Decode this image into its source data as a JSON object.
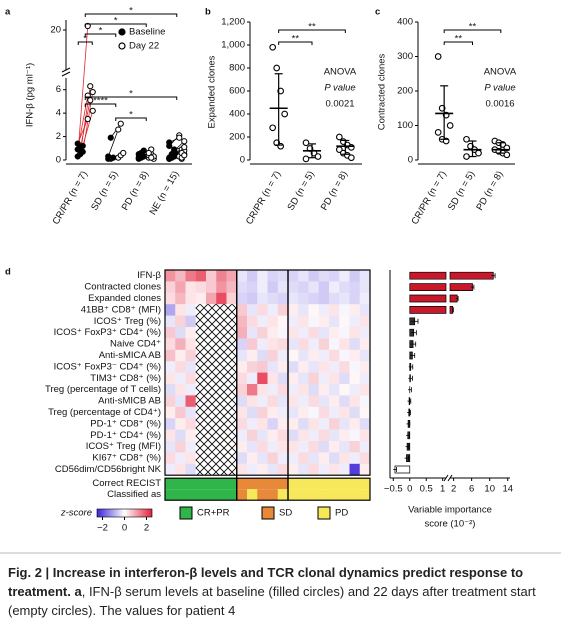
{
  "chart_data": [
    {
      "type": "paired-dot",
      "panel": "a",
      "ylabel": "IFN-β (pg ml⁻¹)",
      "categories": [
        "CR/PR (n = 7)",
        "SD (n = 5)",
        "PD (n = 8)",
        "NE (n = 15)"
      ],
      "ylim": [
        0,
        7
      ],
      "yticks": [
        0,
        2,
        4,
        6
      ],
      "ylim_upper": [
        18,
        20.5
      ],
      "yticks_upper": [
        20
      ],
      "line_colors": [
        "#e0262b",
        "#000000",
        "#000000",
        "#000000"
      ],
      "series": [
        {
          "name": "Baseline",
          "color": "#000000",
          "filled": true,
          "values": [
            [
              0.3,
              0.5,
              0.7,
              0.9,
              1.0,
              1.2,
              1.4
            ],
            [
              0.1,
              0.1,
              0.2,
              0.3,
              1.9
            ],
            [
              0.1,
              0.2,
              0.3,
              0.5,
              0.6,
              0.8,
              0.2,
              0.4
            ],
            [
              0.1,
              0.2,
              0.3,
              0.2,
              0.5,
              0.8,
              1.2,
              0.4,
              0.6,
              0.1,
              0.3,
              0.9,
              1.5,
              0.2,
              0.7
            ]
          ]
        },
        {
          "name": "Day 22",
          "color": "#000000",
          "filled": false,
          "values": [
            [
              20.2,
              6.3,
              5.8,
              5.5,
              5.1,
              4.2,
              3.5
            ],
            [
              0.2,
              0.4,
              0.6,
              2.6,
              3.1
            ],
            [
              0.2,
              0.5,
              0.1,
              0.4,
              0.9,
              0.3,
              0.6,
              0.2
            ],
            [
              0.3,
              0.1,
              0.5,
              0.4,
              0.9,
              1.6,
              2.1,
              0.2,
              0.8,
              0.3,
              0.2,
              1.1,
              1.9,
              0.6,
              0.4
            ]
          ]
        }
      ],
      "annotations": [
        {
          "text": "*",
          "from": 0,
          "to": 3
        },
        {
          "text": "*",
          "from": 0,
          "to": 2
        },
        {
          "text": "*",
          "from": 0,
          "to": 1
        },
        {
          "text": "*",
          "from": 0,
          "to": 0
        },
        {
          "text": "*",
          "from": 0,
          "to": 3
        },
        {
          "text": "****",
          "from": 0,
          "to": 1
        },
        {
          "text": "*",
          "from": 1,
          "to": 2
        }
      ]
    },
    {
      "type": "dot-median",
      "panel": "b",
      "ylabel": "Expanded clones",
      "categories": [
        "CR/PR (n = 7)",
        "SD (n = 5)",
        "PD (n = 8)"
      ],
      "ylim": [
        0,
        1200
      ],
      "yticks": [
        0,
        200,
        400,
        600,
        800,
        {
          "value": 1000,
          "label": "1,000"
        },
        {
          "value": 1200,
          "label": "1,200"
        }
      ],
      "values": [
        [
          980,
          800,
          600,
          400,
          280,
          150,
          120
        ],
        [
          150,
          100,
          60,
          30,
          10
        ],
        [
          200,
          160,
          130,
          110,
          90,
          60,
          40,
          20
        ]
      ],
      "medians": [
        450,
        80,
        120
      ],
      "ranges": [
        [
          130,
          750
        ],
        [
          20,
          140
        ],
        [
          50,
          170
        ]
      ],
      "annotations": [
        {
          "text": "**",
          "from": 0,
          "to": 2
        },
        {
          "text": "**",
          "from": 0,
          "to": 1
        }
      ],
      "stats_text": [
        "ANOVA",
        "P value",
        "0.0021"
      ]
    },
    {
      "type": "dot-median",
      "panel": "c",
      "ylabel": "Contracted clones",
      "categories": [
        "CR/PR (n = 7)",
        "SD (n = 5)",
        "PD (n = 8)"
      ],
      "ylim": [
        0,
        400
      ],
      "yticks": [
        0,
        100,
        200,
        300,
        400
      ],
      "values": [
        [
          300,
          150,
          130,
          100,
          80,
          60,
          55
        ],
        [
          60,
          40,
          30,
          20,
          10
        ],
        [
          55,
          50,
          45,
          35,
          30,
          25,
          20,
          15
        ]
      ],
      "medians": [
        135,
        30,
        30
      ],
      "ranges": [
        [
          60,
          215
        ],
        [
          10,
          55
        ],
        [
          20,
          50
        ]
      ],
      "annotations": [
        {
          "text": "**",
          "from": 0,
          "to": 2
        },
        {
          "text": "**",
          "from": 0,
          "to": 1
        }
      ],
      "stats_text": [
        "ANOVA",
        "P value",
        "0.0016"
      ]
    },
    {
      "type": "heatmap",
      "panel": "d",
      "rows": [
        "IFN-β",
        "Contracted clones",
        "Expanded clones",
        "41BB⁺ CD8⁺ (MFI)",
        "ICOS⁺ Treg (%)",
        "ICOS⁺ FoxP3⁺ CD4⁺ (%)",
        "Naive CD4⁺",
        "Anti-sMICA AB",
        "ICOS⁺ FoxP3⁻ CD4⁺ (%)",
        "TIM3⁺ CD8⁺ (%)",
        "Treg (percentage of T cells)",
        "Anti-sMICB AB",
        "Treg (percentage of CD4⁺)",
        "PD-1⁺ CD8⁺ (%)",
        "PD-1⁺ CD4⁺ (%)",
        "ICOS⁺ Treg (MFI)",
        "KI67⁺ CD8⁺ (%)",
        "CD56dim/CD56bright NK"
      ],
      "values": [
        [
          1.2,
          0.8,
          1.5,
          1.8,
          0.6,
          1.4,
          1.0,
          -0.3,
          -0.6,
          -0.2,
          -0.5,
          -0.4,
          -0.5,
          -0.3,
          -0.6,
          -0.4,
          -0.5,
          -0.2,
          -0.6,
          -0.3
        ],
        [
          0.5,
          1.0,
          0.3,
          0.4,
          0.6,
          1.2,
          0.8,
          -0.4,
          -0.5,
          -0.2,
          -0.6,
          -0.3,
          -0.4,
          -0.5,
          -0.3,
          -0.6,
          -0.2,
          -0.4,
          -0.5,
          -0.3
        ],
        [
          0.4,
          0.8,
          0.3,
          0.2,
          1.0,
          2.0,
          0.5,
          -0.5,
          -0.6,
          -0.3,
          -0.4,
          -0.5,
          -0.3,
          -0.4,
          -0.5,
          -0.6,
          -0.4,
          -0.3,
          -0.5,
          -0.2
        ],
        [
          -1.0,
          0.3,
          -0.2,
          null,
          null,
          null,
          null,
          0.6,
          -0.3,
          0.4,
          -0.2,
          0.5,
          0.2,
          -0.3,
          0.1,
          -0.2,
          0.3,
          -0.1,
          0.2,
          -0.3
        ],
        [
          -0.3,
          0.5,
          -0.6,
          null,
          null,
          null,
          null,
          0.8,
          0.4,
          -0.2,
          0.3,
          0.1,
          -0.2,
          0.3,
          -0.1,
          0.2,
          -0.3,
          0.1,
          -0.2,
          0.3
        ],
        [
          0.6,
          -0.4,
          0.2,
          null,
          null,
          null,
          null,
          0.9,
          -0.3,
          0.5,
          0.2,
          -0.1,
          0.3,
          -0.2,
          0.4,
          -0.3,
          0.2,
          -0.1,
          0.3,
          -0.2
        ],
        [
          0.4,
          0.9,
          0.3,
          null,
          null,
          null,
          null,
          -0.5,
          0.6,
          -0.2,
          0.3,
          0.4,
          -0.3,
          0.4,
          -0.2,
          0.5,
          -0.1,
          0.3,
          -0.4,
          0.2
        ],
        [
          0.7,
          0.2,
          0.5,
          null,
          null,
          null,
          null,
          -0.3,
          0.2,
          -0.4,
          0.5,
          -0.2,
          0.1,
          -0.3,
          0.2,
          -0.2,
          0.4,
          -0.1,
          0.2,
          -0.3
        ],
        [
          -0.2,
          0.4,
          -0.3,
          null,
          null,
          null,
          null,
          0.2,
          0.5,
          0.6,
          -0.3,
          0.2,
          -0.4,
          0.2,
          -0.3,
          0.3,
          -0.2,
          0.4,
          -0.1,
          0.2
        ],
        [
          0.3,
          -0.2,
          0.4,
          null,
          null,
          null,
          null,
          0.4,
          -0.2,
          2.0,
          0.3,
          -0.4,
          0.2,
          -0.3,
          0.5,
          -0.2,
          0.3,
          -0.4,
          0.1,
          -0.2
        ],
        [
          -0.4,
          0.3,
          -0.2,
          null,
          null,
          null,
          null,
          0.5,
          1.5,
          0.3,
          -0.2,
          0.4,
          -0.2,
          0.3,
          -0.4,
          0.2,
          -0.3,
          0.1,
          -0.2,
          0.3
        ],
        [
          0.5,
          -0.3,
          1.8,
          null,
          null,
          null,
          null,
          -0.4,
          0.3,
          -0.2,
          0.4,
          -0.3,
          0.3,
          -0.2,
          0.4,
          -0.3,
          0.2,
          -0.4,
          0.3,
          -0.1
        ],
        [
          0.2,
          0.6,
          -0.3,
          null,
          null,
          null,
          null,
          0.3,
          -0.4,
          0.5,
          0.2,
          -0.2,
          -0.3,
          0.2,
          -0.1,
          0.4,
          -0.2,
          0.3,
          -0.4,
          0.1
        ],
        [
          -0.5,
          0.2,
          0.4,
          null,
          null,
          null,
          null,
          0.4,
          -0.2,
          0.3,
          -0.5,
          0.2,
          0.2,
          -0.4,
          0.3,
          -0.2,
          0.5,
          -0.3,
          0.2,
          -0.4
        ],
        [
          0.3,
          -0.4,
          0.2,
          null,
          null,
          null,
          null,
          -0.2,
          0.5,
          -0.3,
          0.2,
          0.4,
          -0.4,
          0.3,
          -0.2,
          0.4,
          -0.3,
          0.2,
          -0.1,
          0.3
        ],
        [
          -0.3,
          0.5,
          -0.2,
          null,
          null,
          null,
          null,
          0.2,
          -0.3,
          0.4,
          -0.2,
          0.3,
          0.3,
          -0.2,
          0.4,
          -0.4,
          0.2,
          -0.3,
          0.5,
          -0.2
        ],
        [
          0.4,
          -0.2,
          0.3,
          null,
          null,
          null,
          null,
          -0.4,
          0.2,
          -0.3,
          0.5,
          -0.2,
          -0.2,
          0.4,
          -0.3,
          0.2,
          -0.4,
          0.3,
          -0.2,
          0.4
        ],
        [
          -0.2,
          0.3,
          -0.4,
          null,
          null,
          null,
          null,
          0.3,
          -0.2,
          0.2,
          -0.3,
          0.4,
          0.2,
          -0.3,
          0.4,
          -0.2,
          0.3,
          -0.2,
          -2.2,
          0.2
        ]
      ],
      "zlim": [
        -2.5,
        2.5
      ],
      "colormap": [
        "#3a23d6",
        "#ffffff",
        "#e3203a"
      ],
      "colorbar_label": "z-score",
      "colorbar_ticks": [
        {
          "value": -2,
          "label": "−2"
        },
        0,
        2
      ],
      "annotation_rows": [
        "Correct RECIST",
        "Classified as"
      ],
      "classes": [
        "CR+PR",
        "SD",
        "PD"
      ],
      "class_colors": [
        "#2fb54a",
        "#e8893a",
        "#f6e85a"
      ],
      "recist": [
        0,
        0,
        0,
        0,
        0,
        0,
        0,
        1,
        1,
        1,
        1,
        1,
        2,
        2,
        2,
        2,
        2,
        2,
        2,
        2
      ],
      "classified": [
        0,
        0,
        0,
        0,
        0,
        0,
        0,
        1,
        2,
        1,
        1,
        2,
        2,
        2,
        2,
        2,
        2,
        2,
        2,
        2
      ]
    },
    {
      "type": "bar-broken",
      "xlabel": [
        "Variable importance",
        "score (10⁻²)"
      ],
      "xlim": [
        -0.6,
        1.1
      ],
      "xticks": [
        {
          "value": -0.5,
          "label": "−0.5"
        },
        0,
        0.5,
        1
      ],
      "xlim_upper": [
        1.2,
        14.5
      ],
      "xticks_upper": [
        2,
        6,
        10,
        14
      ],
      "values": [
        10.8,
        6.2,
        2.8,
        1.8,
        0.15,
        0.12,
        0.1,
        0.08,
        0.03,
        0.02,
        0.0,
        -0.02,
        -0.03,
        -0.05,
        -0.06,
        -0.08,
        -0.1,
        -0.45
      ],
      "errors": [
        0.4,
        0.3,
        0.2,
        0.15,
        0.1,
        0.08,
        0.08,
        0.07,
        0.06,
        0.06,
        0.05,
        0.05,
        0.05,
        0.05,
        0.05,
        0.05,
        0.06,
        0.05
      ],
      "colors": [
        "#c8182c",
        "#c8182c",
        "#c8182c",
        "#c8182c",
        "#333333",
        "#333333",
        "#333333",
        "#333333",
        "#333333",
        "#333333",
        "#333333",
        "#333333",
        "#333333",
        "#333333",
        "#333333",
        "#333333",
        "#333333",
        "#ffffff"
      ]
    }
  ],
  "caption": {
    "title": "Fig. 2 | Increase in interferon-β levels and TCR clonal dynamics predict response to treatment.",
    "panel": "a",
    "text": ", IFN-β serum levels at baseline (filled circles) and 22 days after treatment start (empty circles). The values for patient 4"
  }
}
